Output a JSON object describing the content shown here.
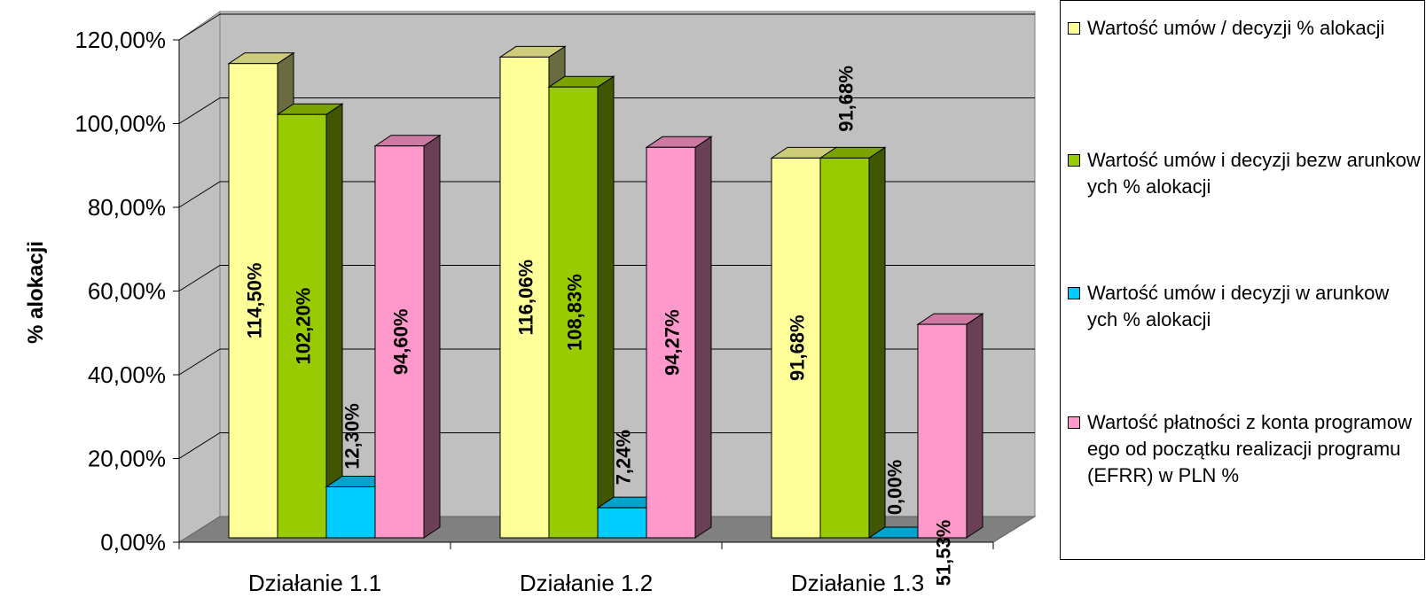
{
  "chart_data": {
    "type": "bar",
    "ylabel": "% alokacji",
    "xlabel": "",
    "ylim": [
      0,
      120
    ],
    "y_ticks": [
      "0,00%",
      "20,00%",
      "40,00%",
      "60,00%",
      "80,00%",
      "100,00%",
      "120,00%"
    ],
    "categories": [
      "Działanie 1.1",
      "Działanie 1.2",
      "Działanie 1.3"
    ],
    "grid": true,
    "legend_position": "right",
    "series": [
      {
        "name": "Wartość umów / decyzji % alokacji",
        "color": "#FFFF99",
        "values": [
          114.5,
          116.06,
          91.68
        ],
        "labels": [
          "114,50%",
          "116,06%",
          "91,68%"
        ]
      },
      {
        "name": "Wartość umów  i decyzji bezw arunkow ych % alokacji",
        "color": "#99CC00",
        "values": [
          102.2,
          108.83,
          91.68
        ],
        "labels": [
          "102,20%",
          "108,83%",
          "91,68%"
        ]
      },
      {
        "name": "Wartość umów  i decyzji w arunkow ych % alokacji",
        "color": "#00CCFF",
        "values": [
          12.3,
          7.24,
          0.0
        ],
        "labels": [
          "12,30%",
          "7,24%",
          "0,00%"
        ]
      },
      {
        "name": "Wartość płatności z konta programow ego od początku realizacji programu (EFRR) w PLN %",
        "color": "#FF99CC",
        "values": [
          94.6,
          94.27,
          51.53
        ],
        "labels": [
          "94,60%",
          "94,27%",
          "51,53%"
        ]
      }
    ]
  }
}
